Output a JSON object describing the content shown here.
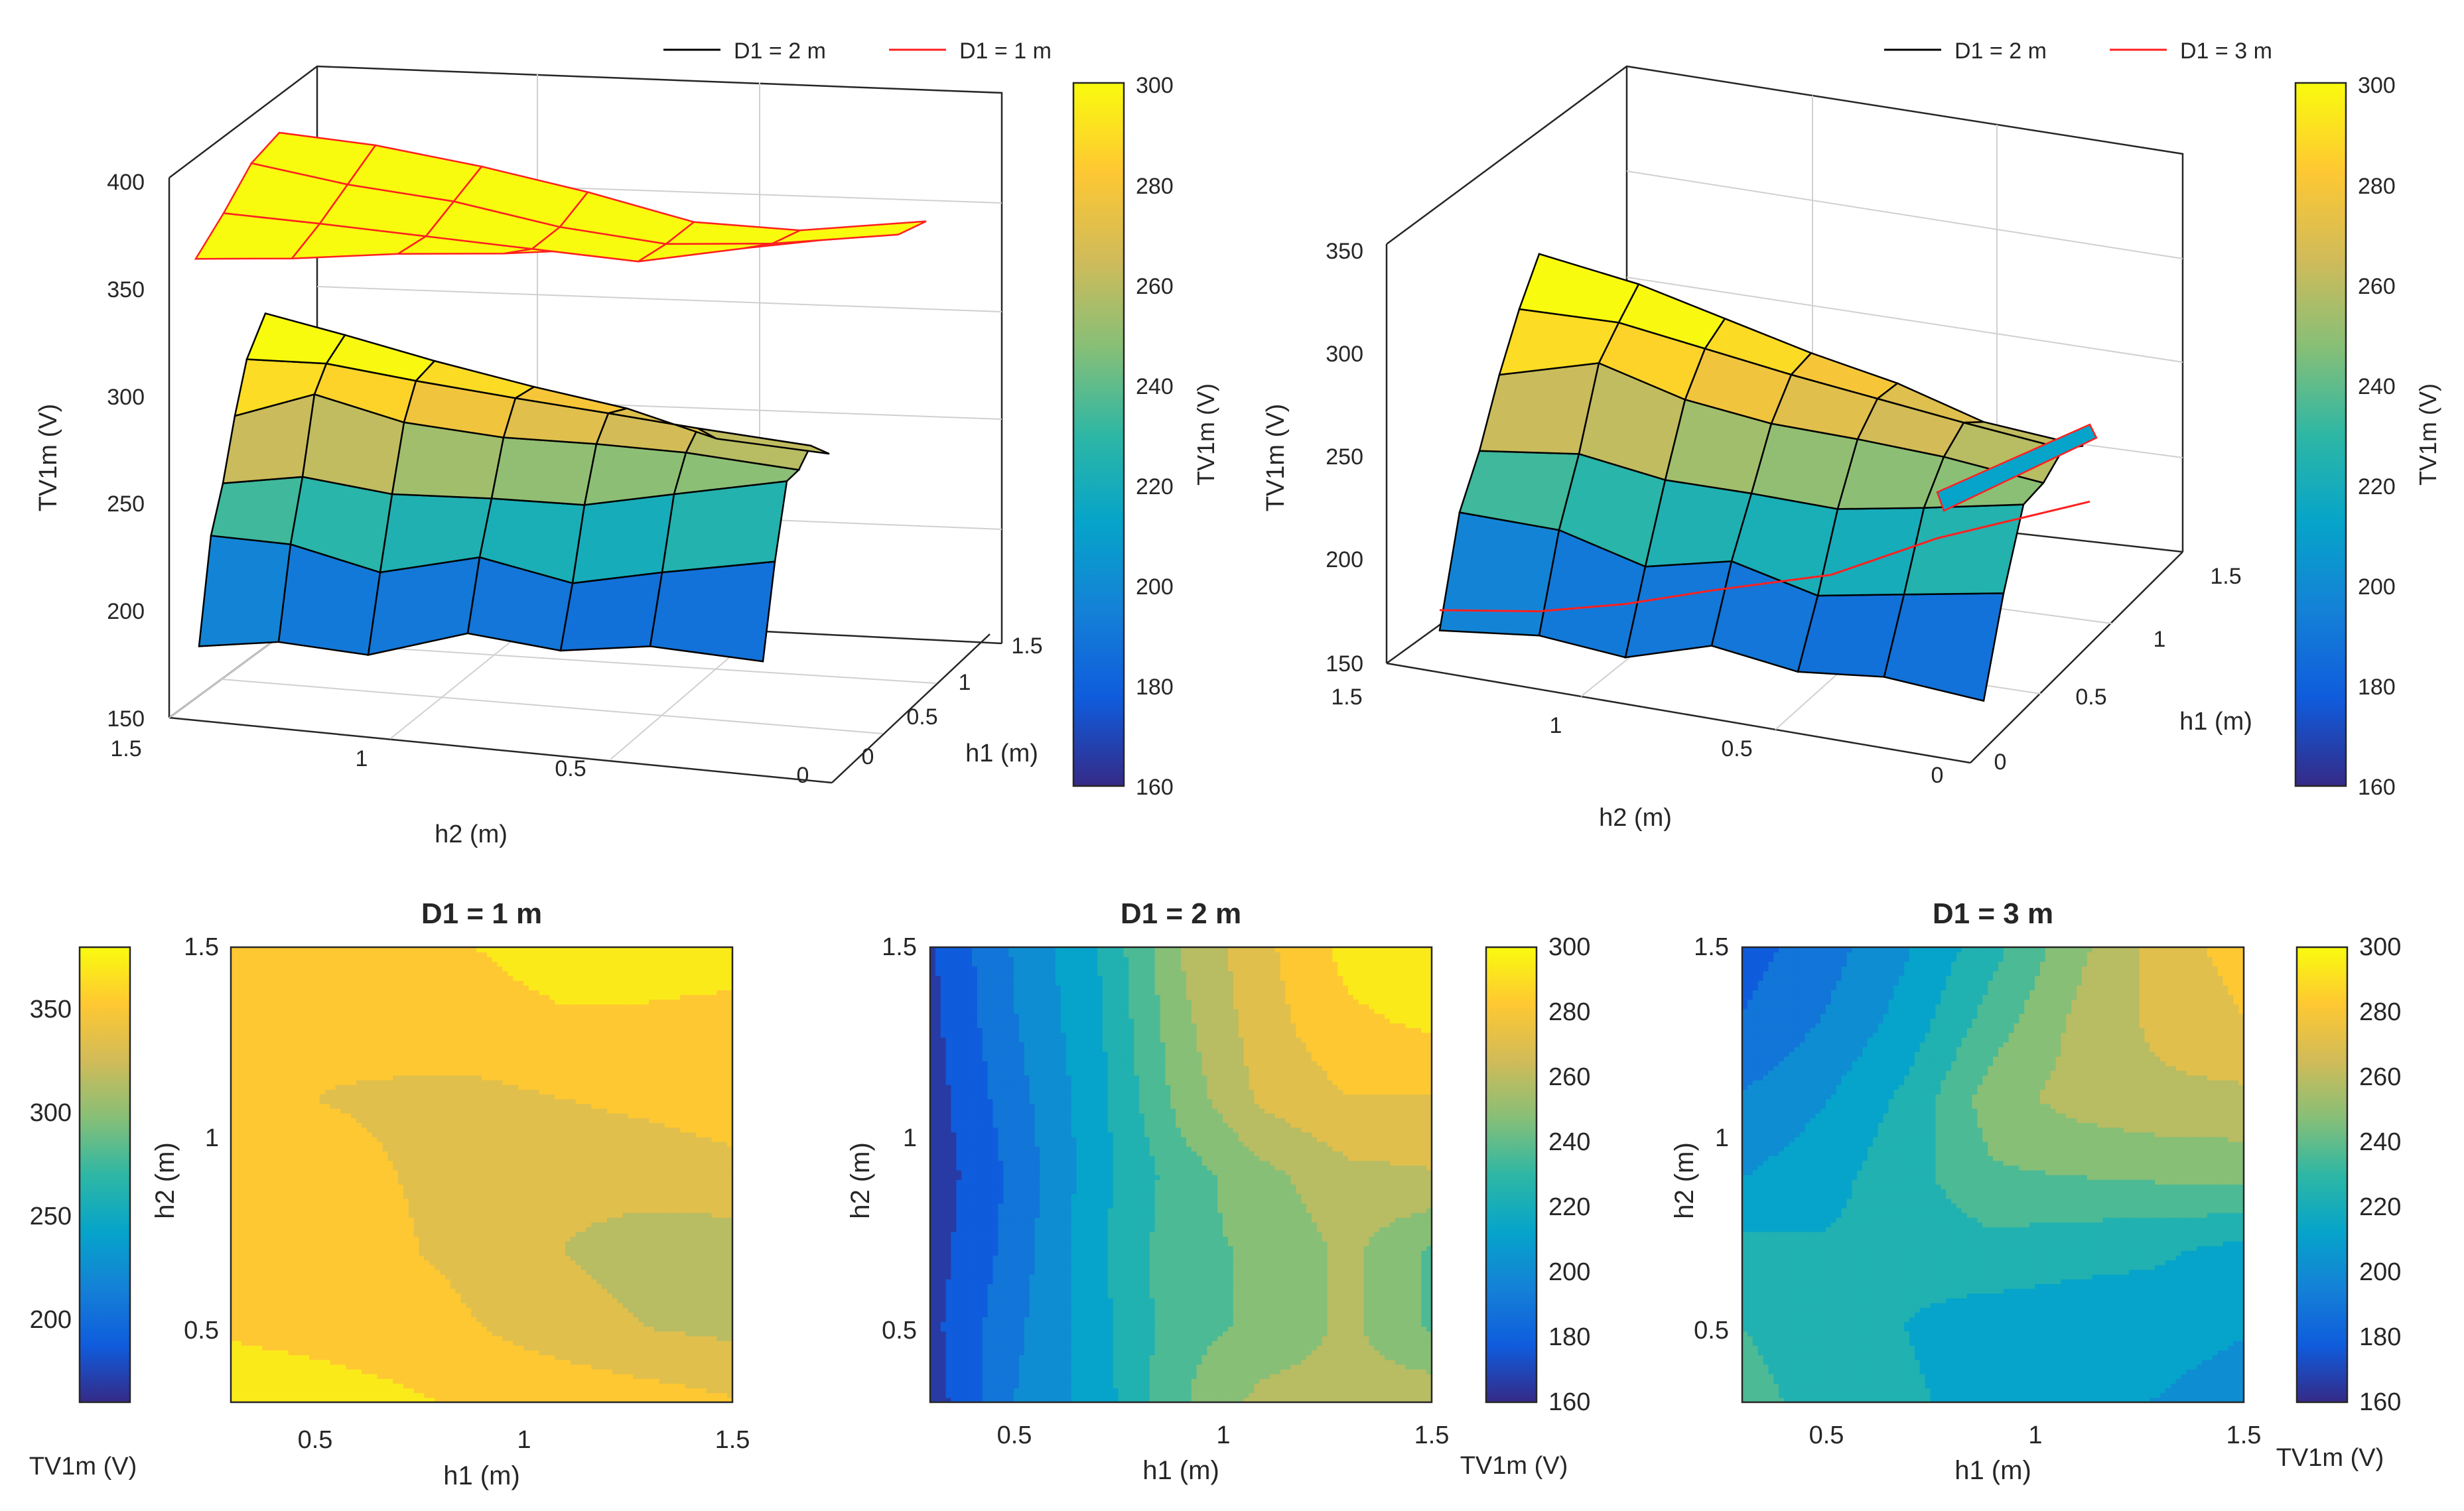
{
  "colors": {
    "colormap_parula": [
      "#352a87",
      "#0f5cdd",
      "#1481d6",
      "#06a4ca",
      "#2eb7a4",
      "#87bf77",
      "#d1bb59",
      "#fec832",
      "#f9fb0e"
    ],
    "edge": "#000000",
    "mesh_red": "#ff2020",
    "axis": "#262626",
    "grid": "#d9d9d9"
  },
  "chart_data": [
    {
      "id": "surf-left",
      "type": "surface3d",
      "legend": [
        "D1 = 2 m",
        "D1 = 1 m"
      ],
      "legend_colors": [
        "#000000",
        "#ff2020"
      ],
      "zlabel": "TV1m (V)",
      "xlabel": "h2 (m)",
      "ylabel": "h1 (m)",
      "zlim": [
        150,
        400
      ],
      "zticks": [
        "150",
        "200",
        "250",
        "300",
        "350",
        "400"
      ],
      "xticks": [
        "1.5",
        "1",
        "0.5",
        "0"
      ],
      "yticks": [
        "0",
        "0.5",
        "1",
        "1.5"
      ],
      "colorbar": {
        "label": "TV1m (V)",
        "range": [
          160,
          300
        ],
        "ticks": [
          "300",
          "280",
          "260",
          "240",
          "220",
          "200",
          "180",
          "160"
        ]
      },
      "surface_front_D1_2m": [
        [
          172,
          174,
          168,
          178,
          170,
          172,
          165
        ],
        [
          222,
          218,
          205,
          212,
          200,
          205,
          210
        ],
        [
          245,
          248,
          240,
          238,
          235,
          240,
          246
        ],
        [
          275,
          285,
          272,
          265,
          262,
          258,
          250
        ],
        [
          300,
          298,
          290,
          282,
          275,
          268,
          260
        ],
        [
          320,
          310,
          298,
          286,
          276,
          262,
          255
        ]
      ],
      "surface_top_D1_1m": [
        [
          360,
          362,
          366,
          368,
          372,
          380,
          382
        ],
        [
          375,
          372,
          368,
          364,
          360,
          368,
          376
        ],
        [
          392,
          384,
          378,
          368,
          362,
          364,
          370
        ],
        [
          400,
          396,
          388,
          378,
          366,
          364,
          370
        ]
      ]
    },
    {
      "id": "surf-right",
      "type": "surface3d",
      "legend": [
        "D1 = 2 m",
        "D1 = 3 m"
      ],
      "legend_colors": [
        "#000000",
        "#ff2020"
      ],
      "zlabel": "TV1m (V)",
      "xlabel": "h2 (m)",
      "ylabel": "h1 (m)",
      "zlim": [
        150,
        350
      ],
      "zticks": [
        "150",
        "200",
        "250",
        "300",
        "350"
      ],
      "xticks": [
        "1.5",
        "1",
        "0.5",
        "0"
      ],
      "yticks": [
        "0",
        "0.5",
        "1",
        "1.5"
      ],
      "colorbar": {
        "label": "TV1m (V)",
        "range": [
          160,
          300
        ],
        "ticks": [
          "300",
          "280",
          "260",
          "240",
          "220",
          "200",
          "180",
          "160"
        ]
      },
      "surface_front_D1_2m": [
        [
          172,
          174,
          168,
          178,
          170,
          172,
          165
        ],
        [
          222,
          218,
          205,
          212,
          200,
          205,
          210
        ],
        [
          245,
          248,
          240,
          238,
          235,
          240,
          246
        ],
        [
          275,
          285,
          272,
          265,
          262,
          258,
          250
        ],
        [
          300,
          298,
          290,
          282,
          275,
          268,
          260
        ],
        [
          320,
          310,
          298,
          286,
          276,
          262,
          255
        ]
      ],
      "surface_D1_3m": [
        188,
        190,
        196,
        205,
        215,
        235,
        255
      ]
    },
    {
      "id": "contour-1",
      "type": "contour",
      "title": "D1 = 1 m",
      "xlabel": "h1 (m)",
      "ylabel": "h2 (m)",
      "xlim": [
        0.3,
        1.5
      ],
      "ylim": [
        0.3,
        1.5
      ],
      "xticks": [
        "0.5",
        "1",
        "1.5"
      ],
      "yticks": [
        "0.5",
        "1",
        "1.5"
      ],
      "colorbar": {
        "label": "TV1m (V)",
        "side": "left",
        "range": [
          165,
          375
        ],
        "ticks": [
          "350",
          "300",
          "250",
          "200"
        ]
      },
      "z_grid": [
        [
          368,
          365,
          360,
          355,
          352,
          348,
          342
        ],
        [
          355,
          352,
          350,
          340,
          330,
          322,
          318
        ],
        [
          348,
          345,
          342,
          334,
          322,
          314,
          312
        ],
        [
          344,
          345,
          340,
          334,
          328,
          330,
          335
        ],
        [
          342,
          340,
          338,
          336,
          340,
          344,
          348
        ],
        [
          340,
          342,
          345,
          350,
          355,
          352,
          345
        ],
        [
          342,
          348,
          354,
          358,
          366,
          372,
          374
        ]
      ]
    },
    {
      "id": "contour-2",
      "type": "contour",
      "title": "D1 = 2 m",
      "xlabel": "h1 (m)",
      "ylabel": "h2 (m)",
      "xlim": [
        0.3,
        1.5
      ],
      "ylim": [
        0.3,
        1.5
      ],
      "xticks": [
        "0.5",
        "1",
        "1.5"
      ],
      "yticks": [
        "0.5",
        "1",
        "1.5"
      ],
      "colorbar": {
        "label": "TV1m (V)",
        "side": "right",
        "range": [
          160,
          300
        ],
        "ticks": [
          "300",
          "280",
          "260",
          "240",
          "220",
          "200",
          "180",
          "160"
        ]
      },
      "z_grid": [
        [
          165,
          195,
          212,
          240,
          258,
          258,
          262
        ],
        [
          168,
          192,
          214,
          238,
          244,
          256,
          240
        ],
        [
          166,
          188,
          216,
          238,
          244,
          256,
          240
        ],
        [
          164,
          186,
          214,
          236,
          250,
          262,
          264
        ],
        [
          166,
          190,
          214,
          246,
          268,
          276,
          276
        ],
        [
          168,
          194,
          216,
          250,
          272,
          286,
          290
        ],
        [
          170,
          196,
          218,
          254,
          274,
          292,
          298
        ]
      ]
    },
    {
      "id": "contour-3",
      "type": "contour",
      "title": "D1 = 3 m",
      "xlabel": "h1 (m)",
      "ylabel": "h2 (m)",
      "xlim": [
        0.3,
        1.5
      ],
      "ylim": [
        0.3,
        1.5
      ],
      "xticks": [
        "0.5",
        "1",
        "1.5"
      ],
      "yticks": [
        "0.5",
        "1",
        "1.5"
      ],
      "colorbar": {
        "label": "TV1m (V)",
        "side": "right",
        "range": [
          160,
          300
        ],
        "ticks": [
          "300",
          "280",
          "260",
          "240",
          "220",
          "200",
          "180",
          "160"
        ]
      },
      "z_grid": [
        [
          234,
          226,
          220,
          214,
          210,
          206,
          200
        ],
        [
          230,
          224,
          218,
          212,
          212,
          212,
          208
        ],
        [
          222,
          220,
          222,
          226,
          222,
          220,
          214
        ],
        [
          206,
          214,
          226,
          240,
          242,
          244,
          246
        ],
        [
          196,
          206,
          222,
          248,
          258,
          262,
          262
        ],
        [
          184,
          196,
          212,
          236,
          256,
          268,
          276
        ],
        [
          178,
          190,
          206,
          226,
          250,
          270,
          282
        ]
      ]
    }
  ]
}
